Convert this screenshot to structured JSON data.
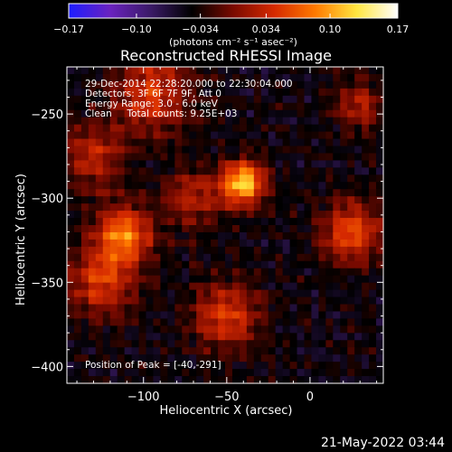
{
  "footer_date": "21-May-2022 03:44",
  "chart_data": {
    "type": "heatmap",
    "title": "Reconstructed RHESSI Image",
    "xlabel": "Heliocentric X (arcsec)",
    "ylabel": "Heliocentric Y (arcsec)",
    "xlim": [
      -146,
      44
    ],
    "ylim": [
      -410,
      -222
    ],
    "xticks": [
      -100,
      -50,
      0
    ],
    "yticks": [
      -250,
      -300,
      -350,
      -400
    ],
    "grid": false,
    "colorbar": {
      "position": "top",
      "min": -0.17,
      "max": 0.17,
      "ticks": [
        -0.17,
        -0.1,
        -0.034,
        0.034,
        0.1,
        0.17
      ],
      "tick_labels": [
        "−0.17",
        "−0.10",
        "−0.034",
        "0.034",
        "0.10",
        "0.17"
      ],
      "units_label": "(photons cm⁻² s⁻¹ asec⁻²)",
      "colors": [
        "#1d1dff",
        "#6a22c0",
        "#3a1a66",
        "#000000",
        "#7a0a00",
        "#d62a00",
        "#ff7a00",
        "#ffe640",
        "#ffffff"
      ]
    },
    "annotations": [
      "29-Dec-2014 22:28:20.000 to 22:30:04.000",
      "Detectors: 3F 6F 7F 9F, Att 0",
      "Energy Range: 3.0 - 6.0 keV",
      "Clean     Total counts: 9.25E+03"
    ],
    "peak_text": "Position of Peak = [-40,-291]",
    "peak": [
      -40,
      -291
    ],
    "sources": [
      {
        "x": -40,
        "y": -291,
        "amp": 0.17,
        "sigma": 9
      },
      {
        "x": -95,
        "y": -238,
        "amp": 0.09,
        "sigma": 16
      },
      {
        "x": -112,
        "y": -322,
        "amp": 0.13,
        "sigma": 12
      },
      {
        "x": -125,
        "y": -350,
        "amp": 0.09,
        "sigma": 14
      },
      {
        "x": -50,
        "y": -370,
        "amp": 0.09,
        "sigma": 14
      },
      {
        "x": 25,
        "y": -320,
        "amp": 0.1,
        "sigma": 13
      },
      {
        "x": 30,
        "y": -245,
        "amp": 0.07,
        "sigma": 10
      },
      {
        "x": -70,
        "y": -300,
        "amp": 0.07,
        "sigma": 12
      },
      {
        "x": -130,
        "y": -275,
        "amp": 0.07,
        "sigma": 14
      }
    ],
    "background": -0.045
  }
}
